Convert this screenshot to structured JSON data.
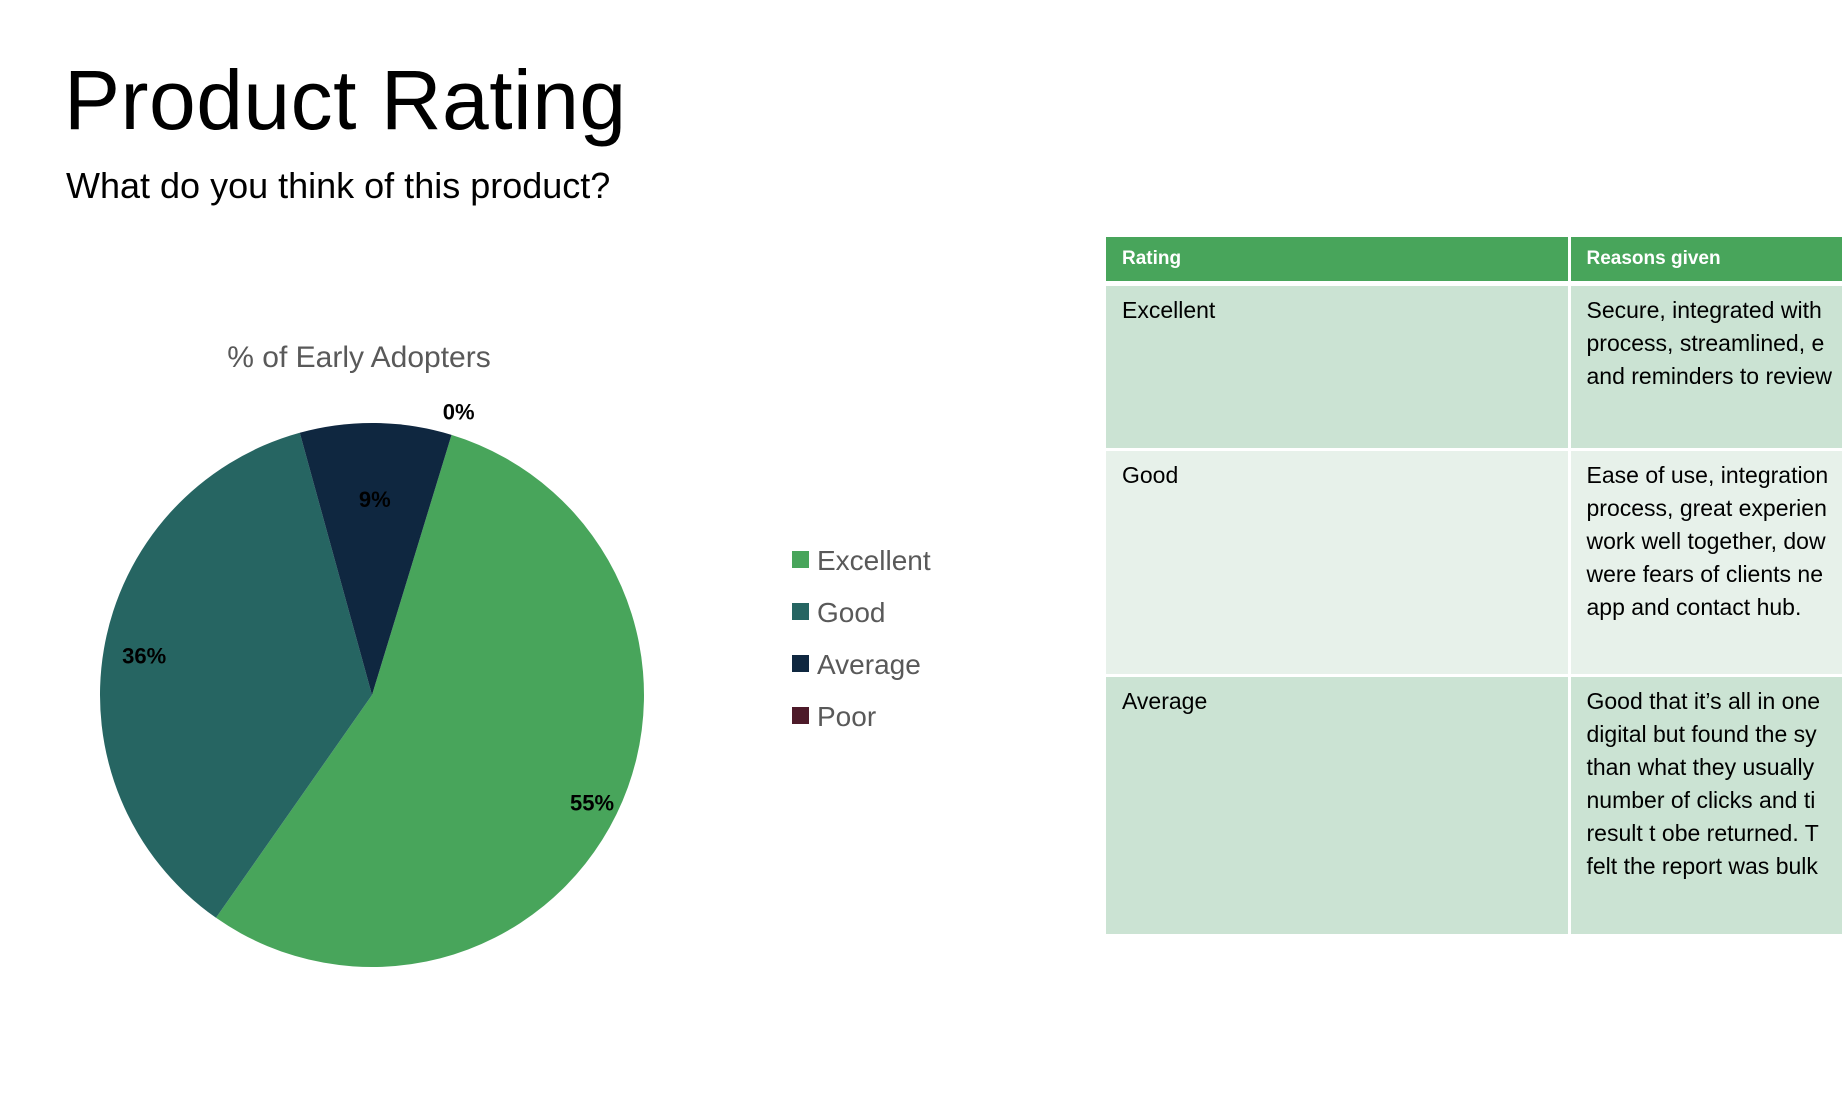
{
  "slide": {
    "title": "Product Rating",
    "subtitle": "What do you think of this product?"
  },
  "chart_data": {
    "type": "pie",
    "title": "% of Early Adopters",
    "categories": [
      "Excellent",
      "Good",
      "Average",
      "Poor"
    ],
    "values": [
      55,
      36,
      9,
      0
    ],
    "labels": [
      "55%",
      "36%",
      "9%",
      "0%"
    ],
    "colors": [
      "#48a55b",
      "#266562",
      "#0f2740",
      "#4d1a29"
    ],
    "legend_position": "right"
  },
  "table": {
    "headers": [
      "Rating",
      "Reasons given"
    ],
    "rows": [
      {
        "rating": "Excellent",
        "reasons": "Secure, integrated with process, streamlined, e and reminders to review"
      },
      {
        "rating": "Good",
        "reasons": "Ease of use, integration process, great experien work well together, dow were fears of clients ne app and contact hub."
      },
      {
        "rating": "Average",
        "reasons": "Good that it’s all in one digital but found the sy than what they usually number of clicks and ti result t obe returned. T felt the report was bulk"
      }
    ]
  }
}
